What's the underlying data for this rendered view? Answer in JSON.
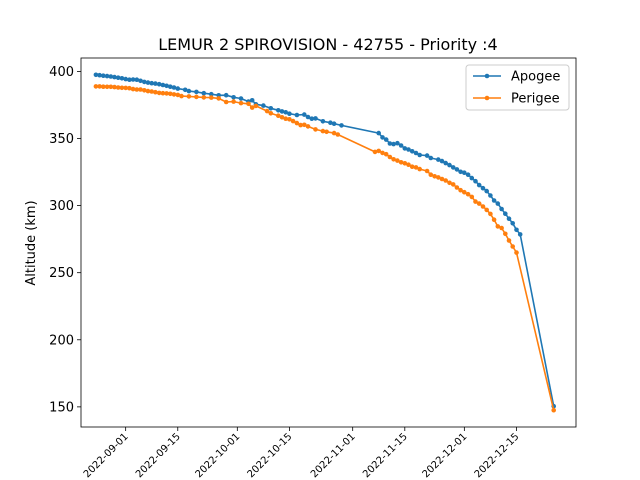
{
  "chart_data": {
    "type": "line",
    "title": "LEMUR 2 SPIROVISION - 42755 - Priority :4",
    "xlabel": "",
    "ylabel": "Altitude (km)",
    "x_is_date": true,
    "xlim": [
      "2022-08-20",
      "2022-12-31"
    ],
    "ylim": [
      135,
      410
    ],
    "yticks": [
      150,
      200,
      250,
      300,
      350,
      400
    ],
    "xticks": [
      "2022-09-01",
      "2022-09-15",
      "2022-10-01",
      "2022-10-15",
      "2022-11-01",
      "2022-11-15",
      "2022-12-01",
      "2022-12-15"
    ],
    "legend_position": "top-right",
    "grid": false,
    "series": [
      {
        "name": "Apogee",
        "color": "#1f77b4",
        "points": [
          [
            "2022-08-24",
            397.5
          ],
          [
            "2022-08-25",
            397.2
          ],
          [
            "2022-08-26",
            396.8
          ],
          [
            "2022-08-27",
            396.5
          ],
          [
            "2022-08-28",
            396.2
          ],
          [
            "2022-08-29",
            395.8
          ],
          [
            "2022-08-30",
            395.3
          ],
          [
            "2022-08-31",
            394.9
          ],
          [
            "2022-09-01",
            394.3
          ],
          [
            "2022-09-02",
            393.8
          ],
          [
            "2022-09-03",
            394.0
          ],
          [
            "2022-09-04",
            393.8
          ],
          [
            "2022-09-05",
            393.0
          ],
          [
            "2022-09-06",
            392.2
          ],
          [
            "2022-09-07",
            391.7
          ],
          [
            "2022-09-08",
            391.2
          ],
          [
            "2022-09-09",
            390.9
          ],
          [
            "2022-09-10",
            390.5
          ],
          [
            "2022-09-11",
            389.9
          ],
          [
            "2022-09-12",
            389.3
          ],
          [
            "2022-09-13",
            388.6
          ],
          [
            "2022-09-14",
            388.0
          ],
          [
            "2022-09-15",
            387.2
          ],
          [
            "2022-09-17",
            386.3
          ],
          [
            "2022-09-18",
            385.3
          ],
          [
            "2022-09-20",
            384.7
          ],
          [
            "2022-09-22",
            383.8
          ],
          [
            "2022-09-24",
            383.0
          ],
          [
            "2022-09-26",
            382.2
          ],
          [
            "2022-09-28",
            382.3
          ],
          [
            "2022-09-30",
            380.7
          ],
          [
            "2022-10-02",
            379.8
          ],
          [
            "2022-10-04",
            377.5
          ],
          [
            "2022-10-05",
            378.5
          ],
          [
            "2022-10-06",
            375.5
          ],
          [
            "2022-10-08",
            374.5
          ],
          [
            "2022-10-10",
            372.5
          ],
          [
            "2022-10-12",
            371.0
          ],
          [
            "2022-10-13",
            370.2
          ],
          [
            "2022-10-14",
            369.5
          ],
          [
            "2022-10-15",
            368.5
          ],
          [
            "2022-10-17",
            367.5
          ],
          [
            "2022-10-19",
            367.8
          ],
          [
            "2022-10-20",
            366.0
          ],
          [
            "2022-10-21",
            364.8
          ],
          [
            "2022-10-22",
            365.0
          ],
          [
            "2022-10-24",
            362.8
          ],
          [
            "2022-10-26",
            361.8
          ],
          [
            "2022-10-27",
            361.0
          ],
          [
            "2022-10-29",
            359.8
          ],
          [
            "2022-11-08",
            354.0
          ],
          [
            "2022-11-09",
            350.8
          ],
          [
            "2022-11-10",
            349.2
          ],
          [
            "2022-11-11",
            346.3
          ],
          [
            "2022-11-12",
            345.8
          ],
          [
            "2022-11-13",
            346.5
          ],
          [
            "2022-11-14",
            344.8
          ],
          [
            "2022-11-15",
            342.6
          ],
          [
            "2022-11-16",
            341.8
          ],
          [
            "2022-11-17",
            340.5
          ],
          [
            "2022-11-18",
            339.2
          ],
          [
            "2022-11-19",
            337.7
          ],
          [
            "2022-11-21",
            337.3
          ],
          [
            "2022-11-22",
            335.5
          ],
          [
            "2022-11-24",
            334.3
          ],
          [
            "2022-11-25",
            333.2
          ],
          [
            "2022-11-26",
            331.7
          ],
          [
            "2022-11-27",
            330.2
          ],
          [
            "2022-11-28",
            328.5
          ],
          [
            "2022-11-29",
            327.0
          ],
          [
            "2022-11-30",
            325.2
          ],
          [
            "2022-12-01",
            324.5
          ],
          [
            "2022-12-02",
            323.0
          ],
          [
            "2022-12-03",
            320.5
          ],
          [
            "2022-12-04",
            318.2
          ],
          [
            "2022-12-05",
            315.3
          ],
          [
            "2022-12-06",
            313.0
          ],
          [
            "2022-12-07",
            310.8
          ],
          [
            "2022-12-08",
            307.5
          ],
          [
            "2022-12-09",
            303.8
          ],
          [
            "2022-12-10",
            301.5
          ],
          [
            "2022-12-11",
            297.5
          ],
          [
            "2022-12-12",
            294.0
          ],
          [
            "2022-12-13",
            290.2
          ],
          [
            "2022-12-14",
            286.8
          ],
          [
            "2022-12-15",
            282.0
          ],
          [
            "2022-12-16",
            278.5
          ],
          [
            "2022-12-25",
            150.5
          ]
        ]
      },
      {
        "name": "Perigee",
        "color": "#ff7f0e",
        "points": [
          [
            "2022-08-24",
            388.8
          ],
          [
            "2022-08-25",
            388.8
          ],
          [
            "2022-08-26",
            388.6
          ],
          [
            "2022-08-27",
            388.5
          ],
          [
            "2022-08-28",
            388.5
          ],
          [
            "2022-08-29",
            388.3
          ],
          [
            "2022-08-30",
            388.0
          ],
          [
            "2022-08-31",
            387.8
          ],
          [
            "2022-09-01",
            387.7
          ],
          [
            "2022-09-02",
            387.5
          ],
          [
            "2022-09-03",
            386.8
          ],
          [
            "2022-09-04",
            386.5
          ],
          [
            "2022-09-05",
            386.5
          ],
          [
            "2022-09-06",
            385.9
          ],
          [
            "2022-09-07",
            385.3
          ],
          [
            "2022-09-08",
            385.0
          ],
          [
            "2022-09-09",
            384.5
          ],
          [
            "2022-09-10",
            384.0
          ],
          [
            "2022-09-11",
            383.8
          ],
          [
            "2022-09-12",
            383.6
          ],
          [
            "2022-09-13",
            383.3
          ],
          [
            "2022-09-14",
            382.9
          ],
          [
            "2022-09-15",
            382.5
          ],
          [
            "2022-09-16",
            381.6
          ],
          [
            "2022-09-18",
            381.4
          ],
          [
            "2022-09-20",
            381.0
          ],
          [
            "2022-09-22",
            380.6
          ],
          [
            "2022-09-24",
            380.5
          ],
          [
            "2022-09-26",
            379.9
          ],
          [
            "2022-09-28",
            377.2
          ],
          [
            "2022-09-30",
            377.5
          ],
          [
            "2022-10-02",
            376.4
          ],
          [
            "2022-10-04",
            375.9
          ],
          [
            "2022-10-05",
            373.0
          ],
          [
            "2022-10-06",
            374.3
          ],
          [
            "2022-10-09",
            370.4
          ],
          [
            "2022-10-10",
            368.8
          ],
          [
            "2022-10-12",
            367.0
          ],
          [
            "2022-10-13",
            365.8
          ],
          [
            "2022-10-14",
            364.8
          ],
          [
            "2022-10-15",
            364.3
          ],
          [
            "2022-10-16",
            363.0
          ],
          [
            "2022-10-17",
            361.5
          ],
          [
            "2022-10-18",
            360.0
          ],
          [
            "2022-10-19",
            360.2
          ],
          [
            "2022-10-20",
            359.0
          ],
          [
            "2022-10-22",
            356.8
          ],
          [
            "2022-10-24",
            355.5
          ],
          [
            "2022-10-25",
            355.0
          ],
          [
            "2022-10-27",
            354.0
          ],
          [
            "2022-10-28",
            353.0
          ],
          [
            "2022-11-07",
            340.0
          ],
          [
            "2022-11-08",
            340.8
          ],
          [
            "2022-11-09",
            339.3
          ],
          [
            "2022-11-10",
            338.3
          ],
          [
            "2022-11-11",
            336.2
          ],
          [
            "2022-11-12",
            334.5
          ],
          [
            "2022-11-13",
            333.5
          ],
          [
            "2022-11-14",
            332.3
          ],
          [
            "2022-11-15",
            331.5
          ],
          [
            "2022-11-16",
            330.5
          ],
          [
            "2022-11-17",
            329.0
          ],
          [
            "2022-11-18",
            328.5
          ],
          [
            "2022-11-19",
            327.2
          ],
          [
            "2022-11-21",
            325.8
          ],
          [
            "2022-11-22",
            323.0
          ],
          [
            "2022-11-23",
            321.8
          ],
          [
            "2022-11-24",
            321.0
          ],
          [
            "2022-11-25",
            319.8
          ],
          [
            "2022-11-26",
            318.7
          ],
          [
            "2022-11-27",
            317.0
          ],
          [
            "2022-11-28",
            315.8
          ],
          [
            "2022-11-29",
            313.5
          ],
          [
            "2022-11-30",
            311.5
          ],
          [
            "2022-12-01",
            310.0
          ],
          [
            "2022-12-02",
            308.5
          ],
          [
            "2022-12-03",
            306.5
          ],
          [
            "2022-12-04",
            303.0
          ],
          [
            "2022-12-05",
            301.5
          ],
          [
            "2022-12-06",
            299.3
          ],
          [
            "2022-12-07",
            296.8
          ],
          [
            "2022-12-08",
            293.8
          ],
          [
            "2022-12-09",
            289.5
          ],
          [
            "2022-12-10",
            284.5
          ],
          [
            "2022-12-11",
            283.3
          ],
          [
            "2022-12-12",
            279.0
          ],
          [
            "2022-12-13",
            274.0
          ],
          [
            "2022-12-14",
            269.5
          ],
          [
            "2022-12-15",
            265.0
          ],
          [
            "2022-12-25",
            147.5
          ]
        ]
      }
    ]
  }
}
